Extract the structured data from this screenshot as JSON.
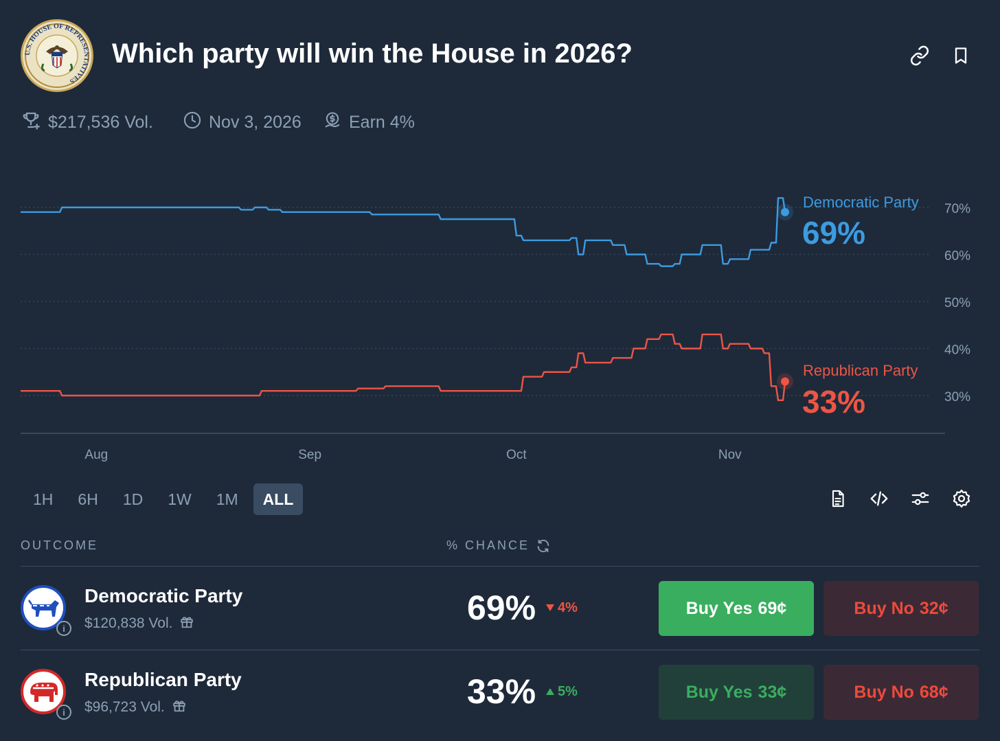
{
  "header": {
    "title": "Which party will win the House in 2026?",
    "seal_text": "U.S. HOUSE OF REPRESENTATIVES",
    "link_icon": "link-icon",
    "bookmark_icon": "bookmark-icon"
  },
  "meta": {
    "volume": "$217,536 Vol.",
    "end_date": "Nov 3, 2026",
    "earn": "Earn 4%"
  },
  "colors": {
    "background": "#1e2a3a",
    "democratic": "#3d9be0",
    "republican": "#ee5545",
    "buy_yes_green": "#3aae5f",
    "buy_no_bg": "#3b2a35",
    "muted": "#8ea0b4"
  },
  "chart_data": {
    "type": "line",
    "x_ticks": [
      "Aug",
      "Sep",
      "Oct",
      "Nov"
    ],
    "y_ticks": [
      "70%",
      "60%",
      "50%",
      "40%",
      "30%"
    ],
    "ylim": [
      0.25,
      0.75
    ],
    "grid": true,
    "series": [
      {
        "name": "Democratic Party",
        "current": "69%",
        "color": "#3d9be0",
        "x": [
          "2025-07-21",
          "2025-07-27",
          "2025-08-20",
          "2025-08-22",
          "2025-08-24",
          "2025-08-26",
          "2025-08-28",
          "2025-09-10",
          "2025-09-20",
          "2025-09-30",
          "2025-10-01",
          "2025-10-02",
          "2025-10-05",
          "2025-10-09",
          "2025-10-10",
          "2025-10-11",
          "2025-10-15",
          "2025-10-17",
          "2025-10-20",
          "2025-10-22",
          "2025-10-24",
          "2025-10-25",
          "2025-10-28",
          "2025-10-31",
          "2025-11-01",
          "2025-11-04",
          "2025-11-06",
          "2025-11-07",
          "2025-11-08",
          "2025-11-09"
        ],
        "values": [
          0.69,
          0.7,
          0.7,
          0.695,
          0.7,
          0.695,
          0.69,
          0.685,
          0.675,
          0.675,
          0.64,
          0.63,
          0.63,
          0.635,
          0.6,
          0.63,
          0.62,
          0.6,
          0.58,
          0.575,
          0.58,
          0.6,
          0.62,
          0.58,
          0.59,
          0.61,
          0.61,
          0.625,
          0.72,
          0.69
        ]
      },
      {
        "name": "Republican Party",
        "current": "33%",
        "color": "#ee5545",
        "x": [
          "2025-07-21",
          "2025-07-27",
          "2025-08-20",
          "2025-08-25",
          "2025-09-01",
          "2025-09-08",
          "2025-09-12",
          "2025-09-20",
          "2025-09-30",
          "2025-10-02",
          "2025-10-05",
          "2025-10-09",
          "2025-10-10",
          "2025-10-11",
          "2025-10-15",
          "2025-10-18",
          "2025-10-20",
          "2025-10-22",
          "2025-10-24",
          "2025-10-25",
          "2025-10-28",
          "2025-10-31",
          "2025-11-01",
          "2025-11-04",
          "2025-11-06",
          "2025-11-07",
          "2025-11-08",
          "2025-11-09"
        ],
        "values": [
          0.31,
          0.3,
          0.3,
          0.31,
          0.31,
          0.315,
          0.32,
          0.31,
          0.31,
          0.34,
          0.35,
          0.36,
          0.39,
          0.37,
          0.38,
          0.4,
          0.42,
          0.43,
          0.41,
          0.4,
          0.43,
          0.4,
          0.41,
          0.4,
          0.39,
          0.32,
          0.29,
          0.33
        ]
      }
    ]
  },
  "timeframes": [
    "1H",
    "6H",
    "1D",
    "1W",
    "1M",
    "ALL"
  ],
  "active_timeframe": "ALL",
  "toolbar": [
    "document-icon",
    "embed-code-icon",
    "sliders-icon",
    "settings-icon"
  ],
  "table": {
    "col_outcome": "OUTCOME",
    "col_chance": "% CHANCE",
    "rows": [
      {
        "name": "Democratic Party",
        "volume": "$120,838 Vol.",
        "chance": "69%",
        "change": "4%",
        "change_dir": "down",
        "buy_yes_label": "Buy Yes",
        "buy_yes_price": "69¢",
        "buy_no_label": "Buy No",
        "buy_no_price": "32¢"
      },
      {
        "name": "Republican Party",
        "volume": "$96,723 Vol.",
        "chance": "33%",
        "change": "5%",
        "change_dir": "up",
        "buy_yes_label": "Buy Yes",
        "buy_yes_price": "33¢",
        "buy_no_label": "Buy No",
        "buy_no_price": "68¢"
      }
    ]
  }
}
